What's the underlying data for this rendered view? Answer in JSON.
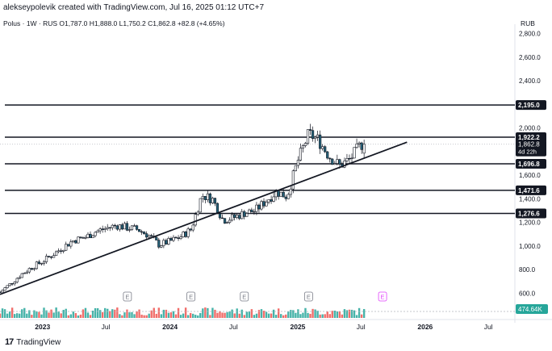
{
  "header": {
    "attribution": "alekseypolevik created with TradingView.com, Jul 16, 2025 01:12 UTC+7"
  },
  "legend": {
    "text": "Polus · 1W · RUS  O1,787.0  H1,888.0  L1,750.2  C1,862.8  +82.8 (+4.65%)"
  },
  "currency": "RUB",
  "footer": {
    "logo": "17",
    "brand": "TradingView"
  },
  "colors": {
    "up": "#26a69a",
    "down": "#ef5350",
    "wick": "#131722",
    "line": "#131722",
    "label_bg": "#131722",
    "label_text": "#ffffff",
    "volume_label_bg": "#26a69a"
  },
  "chart_data": {
    "type": "candlestick",
    "y_axis": {
      "ticks": [
        600,
        800,
        1000,
        1200,
        1400,
        1600,
        1800,
        2000,
        2200,
        2400,
        2600,
        2800
      ],
      "tick_labels": [
        "600.0",
        "800.0",
        "1,000.0",
        "1,200.0",
        "1,400.0",
        "1,600.0",
        "1,800.0",
        "2,000.0",
        "2,200.0",
        "2,400.0",
        "2,600.0",
        "2,800.0"
      ],
      "range": [
        500,
        2880
      ]
    },
    "x_axis": {
      "tick_labels": [
        "2023",
        "Jul",
        "2024",
        "Jul",
        "2025",
        "Jul",
        "2026",
        "Jul"
      ],
      "tick_dates": [
        "2023-01-01",
        "2023-07-01",
        "2024-01-01",
        "2024-07-01",
        "2025-01-01",
        "2025-07-01",
        "2026-01-01",
        "2026-07-01"
      ]
    },
    "horizontal_levels": [
      {
        "value": 2195.0,
        "label": "2,195.0"
      },
      {
        "value": 1922.2,
        "label": "1,922.2"
      },
      {
        "value": 1696.8,
        "label": "1,696.8"
      },
      {
        "value": 1471.6,
        "label": "1,471.6"
      },
      {
        "value": 1276.6,
        "label": "1,276.6"
      }
    ],
    "trendline": {
      "start": {
        "date": "2022-09-01",
        "value": 590
      },
      "end": {
        "date": "2025-11-10",
        "value": 1880
      }
    },
    "last_price": {
      "value": 1862.8,
      "label": "1,862.8",
      "countdown": "4d 22h"
    },
    "volume_label": "474.64K",
    "earnings_markers": [
      {
        "date": "2023-09-01",
        "label": "E"
      },
      {
        "date": "2024-03-01",
        "label": "E"
      },
      {
        "date": "2024-08-01",
        "label": "E"
      },
      {
        "date": "2025-02-01",
        "label": "E"
      },
      {
        "date": "2025-09-01",
        "label": "E",
        "upcoming": true
      }
    ],
    "price_path": [
      {
        "date": "2022-09-01",
        "value": 610
      },
      {
        "date": "2022-10-01",
        "value": 680
      },
      {
        "date": "2022-11-01",
        "value": 760
      },
      {
        "date": "2022-12-01",
        "value": 820
      },
      {
        "date": "2023-01-01",
        "value": 870
      },
      {
        "date": "2023-02-01",
        "value": 930
      },
      {
        "date": "2023-03-01",
        "value": 990
      },
      {
        "date": "2023-04-01",
        "value": 1050
      },
      {
        "date": "2023-05-01",
        "value": 1070
      },
      {
        "date": "2023-06-01",
        "value": 1120
      },
      {
        "date": "2023-07-01",
        "value": 1150
      },
      {
        "date": "2023-08-01",
        "value": 1175
      },
      {
        "date": "2023-09-01",
        "value": 1155
      },
      {
        "date": "2023-10-01",
        "value": 1140
      },
      {
        "date": "2023-11-01",
        "value": 1090
      },
      {
        "date": "2023-12-01",
        "value": 1010
      },
      {
        "date": "2024-01-01",
        "value": 1040
      },
      {
        "date": "2024-02-01",
        "value": 1080
      },
      {
        "date": "2024-03-01",
        "value": 1140
      },
      {
        "date": "2024-04-01",
        "value": 1430
      },
      {
        "date": "2024-05-01",
        "value": 1400
      },
      {
        "date": "2024-06-01",
        "value": 1220
      },
      {
        "date": "2024-07-01",
        "value": 1240
      },
      {
        "date": "2024-08-01",
        "value": 1280
      },
      {
        "date": "2024-09-01",
        "value": 1300
      },
      {
        "date": "2024-10-01",
        "value": 1380
      },
      {
        "date": "2024-11-01",
        "value": 1460
      },
      {
        "date": "2024-12-01",
        "value": 1420
      },
      {
        "date": "2025-01-01",
        "value": 1720
      },
      {
        "date": "2025-02-01",
        "value": 1950
      },
      {
        "date": "2025-03-01",
        "value": 1900
      },
      {
        "date": "2025-04-01",
        "value": 1760
      },
      {
        "date": "2025-05-01",
        "value": 1680
      },
      {
        "date": "2025-06-01",
        "value": 1740
      },
      {
        "date": "2025-07-01",
        "value": 1862.8
      }
    ]
  }
}
